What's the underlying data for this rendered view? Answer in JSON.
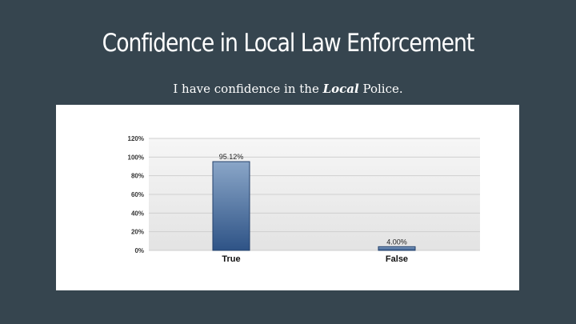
{
  "slide": {
    "title": "Confidence in Local Law Enforcement",
    "subtitle_before": "I have confidence in the ",
    "subtitle_emphasis": "Local",
    "subtitle_after": " Police."
  },
  "chart_data": {
    "type": "bar",
    "categories": [
      "True",
      "False"
    ],
    "values": [
      95.12,
      4.0
    ],
    "data_labels": [
      "95.12%",
      "4.00%"
    ],
    "yticks": [
      "0%",
      "20%",
      "40%",
      "60%",
      "80%",
      "100%",
      "120%"
    ],
    "ylim": [
      0,
      120
    ],
    "grid": true,
    "legend": "none",
    "colors": {
      "bar_top": "#8aa6c8",
      "bar_bottom": "#2e5386",
      "bar_edge": "#23406b",
      "plot_bg_top": "#f6f6f6",
      "plot_bg_bottom": "#e3e3e3",
      "gridline": "#cfcfcf"
    }
  }
}
